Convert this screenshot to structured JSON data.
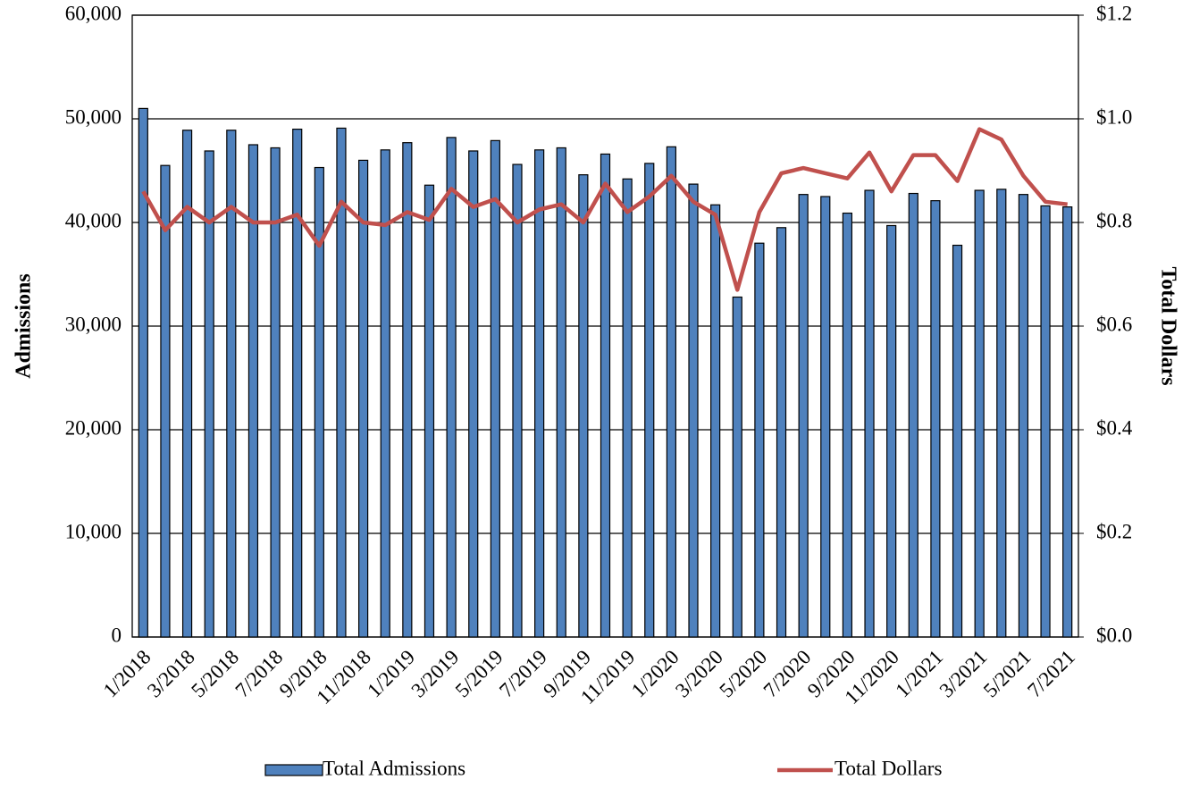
{
  "chart_data": {
    "type": "bar_line",
    "categories": [
      "1/2018",
      null,
      "3/2018",
      null,
      "5/2018",
      null,
      "7/2018",
      null,
      "9/2018",
      null,
      "11/2018",
      null,
      "1/2019",
      null,
      "3/2019",
      null,
      "5/2019",
      null,
      "7/2019",
      null,
      "9/2019",
      null,
      "11/2019",
      null,
      "1/2020",
      null,
      "3/2020",
      null,
      "5/2020",
      null,
      "7/2020",
      null,
      "9/2020",
      null,
      "11/2020",
      null,
      "1/2021",
      null,
      "3/2021",
      null,
      "5/2021",
      null,
      "7/2021"
    ],
    "series": [
      {
        "name": "Total Admissions",
        "type": "bar",
        "color": "#4f81bd",
        "axis": "y",
        "values": [
          51000,
          45500,
          48900,
          46900,
          48900,
          47500,
          47200,
          49000,
          45300,
          49100,
          46000,
          47000,
          47700,
          43600,
          48200,
          46900,
          47900,
          45600,
          47000,
          47200,
          44600,
          46600,
          44200,
          45700,
          47300,
          43700,
          41700,
          32800,
          38000,
          39500,
          42700,
          42500,
          40900,
          43100,
          39700,
          42800,
          42100,
          37800,
          43100,
          43200,
          42700,
          41600,
          41500
        ]
      },
      {
        "name": "Total Dollars",
        "type": "line",
        "color": "#c0504d",
        "axis": "y2",
        "values": [
          0.86,
          0.785,
          0.83,
          0.8,
          0.83,
          0.8,
          0.8,
          0.815,
          0.755,
          0.84,
          0.8,
          0.795,
          0.82,
          0.805,
          0.865,
          0.83,
          0.845,
          0.8,
          0.825,
          0.835,
          0.8,
          0.875,
          0.82,
          0.85,
          0.89,
          0.84,
          0.815,
          0.67,
          0.82,
          0.895,
          0.905,
          0.895,
          0.885,
          0.935,
          0.86,
          0.93,
          0.93,
          0.88,
          0.98,
          0.96,
          0.89,
          0.84,
          0.835
        ]
      }
    ],
    "ylabel": "Admissions",
    "y2label": "Total Dollars",
    "ylim": [
      0,
      60000
    ],
    "yticks": [
      0,
      {
        "value": 10000,
        "label": "10,000"
      },
      {
        "value": 20000,
        "label": "20,000"
      },
      {
        "value": 30000,
        "label": "30,000"
      },
      {
        "value": 40000,
        "label": "40,000"
      },
      {
        "value": 50000,
        "label": "50,000"
      },
      {
        "value": 60000,
        "label": "60,000"
      }
    ],
    "y2lim": [
      0,
      1.2
    ],
    "y2ticks": [
      {
        "value": 0,
        "label": "$0.0"
      },
      {
        "value": 0.2,
        "label": "$0.2"
      },
      {
        "value": 0.4,
        "label": "$0.4"
      },
      {
        "value": 0.6,
        "label": "$0.6"
      },
      {
        "value": 0.8,
        "label": "$0.8"
      },
      {
        "value": 1.0,
        "label": "$1.0"
      },
      {
        "value": 1.2,
        "label": "$1.2"
      }
    ],
    "grid": true,
    "legend": "bottom"
  }
}
